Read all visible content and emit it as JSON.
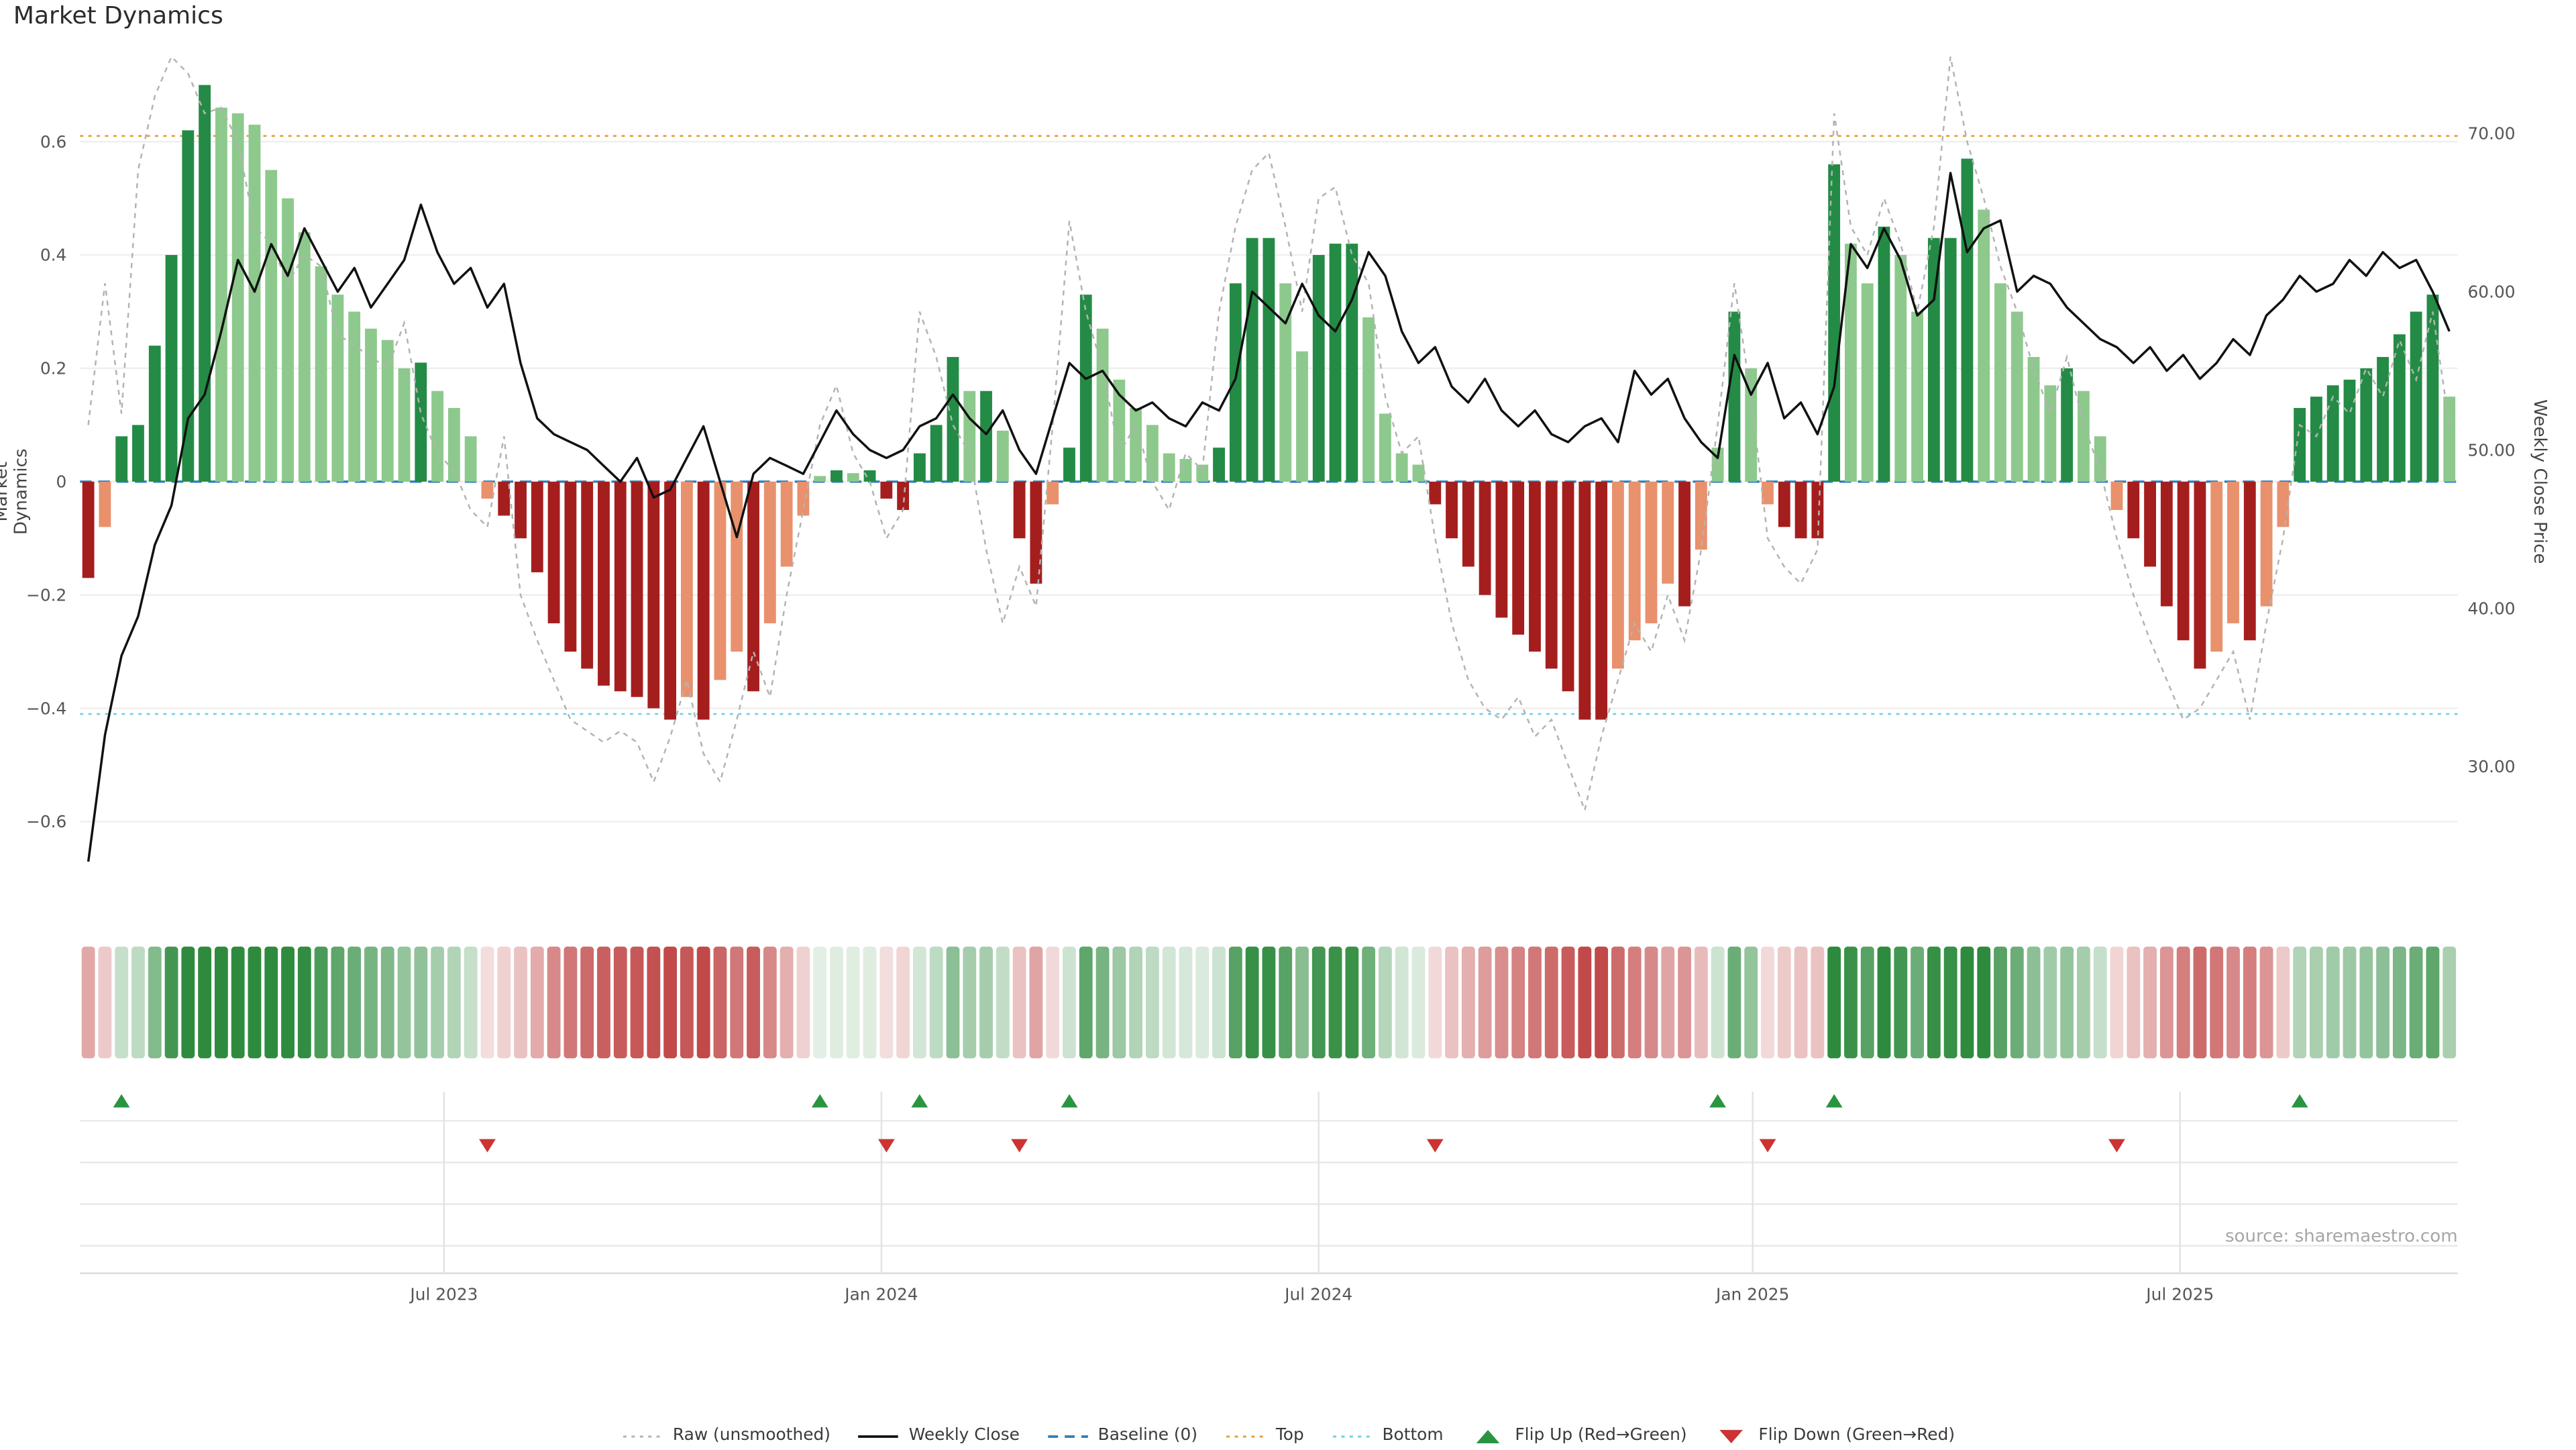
{
  "title": "Market Dynamics",
  "source": "source: sharemaestro.com",
  "axes": {
    "left_label": "Market Dynamics",
    "right_label": "Weekly Close Price",
    "left_ticks": [
      {
        "label": "0.6",
        "value": 0.6
      },
      {
        "label": "0.4",
        "value": 0.4
      },
      {
        "label": "0.2",
        "value": 0.2
      },
      {
        "label": "0",
        "value": 0
      },
      {
        "label": "−0.2",
        "value": -0.2
      },
      {
        "label": "−0.4",
        "value": -0.4
      },
      {
        "label": "−0.6",
        "value": -0.6
      }
    ],
    "right_ticks": [
      {
        "label": "70.00",
        "value": 70
      },
      {
        "label": "60.00",
        "value": 60
      },
      {
        "label": "50.00",
        "value": 50
      },
      {
        "label": "40.00",
        "value": 40
      },
      {
        "label": "30.00",
        "value": 30
      }
    ],
    "x_ticks": [
      {
        "label": "Jul 2023",
        "week": 21.4
      },
      {
        "label": "Jan 2024",
        "week": 47.7
      },
      {
        "label": "Jul 2024",
        "week": 74.0
      },
      {
        "label": "Jan 2025",
        "week": 100.1
      },
      {
        "label": "Jul 2025",
        "week": 125.8
      }
    ]
  },
  "legend": [
    {
      "label": "Raw (unsmoothed)"
    },
    {
      "label": "Weekly Close"
    },
    {
      "label": "Baseline (0)"
    },
    {
      "label": "Top"
    },
    {
      "label": "Bottom"
    },
    {
      "label": "Flip Up (Red→Green)"
    },
    {
      "label": "Flip Down (Green→Red)"
    }
  ],
  "colors": {
    "raw_line": "#b3b3b3",
    "close_line": "#111111",
    "baseline": "#2d7fb8",
    "top": "#e6a23c",
    "bottom": "#6ed0e8",
    "bar_up_strong": "#238b45",
    "bar_up_soft": "#8dc98d",
    "bar_down_strong": "#a51e1e",
    "bar_down_soft": "#e8916c",
    "flip_up": "#2a9440",
    "flip_down": "#cc3333",
    "heat_green": [
      46,
      139,
      62
    ],
    "heat_red": [
      190,
      62,
      62
    ]
  },
  "chart_data": {
    "type": "combo (bar + line + heatmap strip + flip markers)",
    "frequency": "weekly",
    "left_ylim": [
      -0.75,
      0.77
    ],
    "right_ylim": [
      21,
      75.5
    ],
    "baseline": 0,
    "top": 0.61,
    "bottom": -0.41,
    "flip_up_weeks": [
      2,
      44,
      50,
      59,
      98,
      105,
      133
    ],
    "flip_down_weeks": [
      24,
      48,
      56,
      81,
      101,
      122
    ],
    "series": [
      {
        "name": "Market Dynamics (bars)",
        "axis": "left",
        "values": [
          -0.17,
          -0.08,
          0.08,
          0.1,
          0.24,
          0.4,
          0.62,
          0.7,
          0.66,
          0.65,
          0.63,
          0.55,
          0.5,
          0.44,
          0.38,
          0.33,
          0.3,
          0.27,
          0.25,
          0.2,
          0.21,
          0.16,
          0.13,
          0.08,
          -0.03,
          -0.06,
          -0.1,
          -0.16,
          -0.25,
          -0.3,
          -0.33,
          -0.36,
          -0.37,
          -0.38,
          -0.4,
          -0.42,
          -0.38,
          -0.42,
          -0.35,
          -0.3,
          -0.37,
          -0.25,
          -0.15,
          -0.06,
          0.01,
          0.02,
          0.015,
          0.02,
          -0.03,
          -0.05,
          0.05,
          0.1,
          0.22,
          0.16,
          0.16,
          0.09,
          -0.1,
          -0.18,
          -0.04,
          0.06,
          0.33,
          0.27,
          0.18,
          0.13,
          0.1,
          0.05,
          0.04,
          0.03,
          0.06,
          0.35,
          0.43,
          0.43,
          0.35,
          0.23,
          0.4,
          0.42,
          0.42,
          0.29,
          0.12,
          0.05,
          0.03,
          -0.04,
          -0.1,
          -0.15,
          -0.2,
          -0.24,
          -0.27,
          -0.3,
          -0.33,
          -0.37,
          -0.42,
          -0.42,
          -0.33,
          -0.28,
          -0.25,
          -0.18,
          -0.22,
          -0.12,
          0.06,
          0.3,
          0.2,
          -0.04,
          -0.08,
          -0.1,
          -0.1,
          0.56,
          0.42,
          0.35,
          0.45,
          0.4,
          0.3,
          0.43,
          0.43,
          0.57,
          0.48,
          0.35,
          0.3,
          0.22,
          0.17,
          0.2,
          0.16,
          0.08,
          -0.05,
          -0.1,
          -0.15,
          -0.22,
          -0.28,
          -0.33,
          -0.3,
          -0.25,
          -0.28,
          -0.22,
          -0.08,
          0.13,
          0.15,
          0.17,
          0.18,
          0.2,
          0.22,
          0.26,
          0.3,
          0.33,
          0.15
        ]
      },
      {
        "name": "Raw (unsmoothed)",
        "axis": "left",
        "values": [
          0.1,
          0.35,
          0.12,
          0.55,
          0.68,
          0.75,
          0.72,
          0.65,
          0.66,
          0.6,
          0.45,
          0.42,
          0.35,
          0.4,
          0.38,
          0.26,
          0.24,
          0.22,
          0.2,
          0.28,
          0.12,
          0.05,
          0.02,
          -0.05,
          -0.08,
          0.08,
          -0.2,
          -0.28,
          -0.35,
          -0.42,
          -0.44,
          -0.46,
          -0.44,
          -0.46,
          -0.53,
          -0.45,
          -0.35,
          -0.48,
          -0.53,
          -0.42,
          -0.3,
          -0.38,
          -0.2,
          -0.05,
          0.1,
          0.17,
          0.05,
          0.0,
          -0.1,
          -0.05,
          0.3,
          0.22,
          0.1,
          0.05,
          -0.12,
          -0.25,
          -0.15,
          -0.22,
          0.1,
          0.46,
          0.3,
          0.2,
          0.05,
          0.1,
          0.0,
          -0.05,
          0.05,
          0.02,
          0.3,
          0.45,
          0.55,
          0.58,
          0.45,
          0.3,
          0.5,
          0.52,
          0.4,
          0.35,
          0.15,
          0.05,
          0.08,
          -0.1,
          -0.25,
          -0.35,
          -0.4,
          -0.42,
          -0.38,
          -0.45,
          -0.42,
          -0.5,
          -0.58,
          -0.45,
          -0.35,
          -0.25,
          -0.3,
          -0.2,
          -0.28,
          -0.12,
          0.1,
          0.35,
          0.15,
          -0.1,
          -0.15,
          -0.18,
          -0.12,
          0.65,
          0.45,
          0.4,
          0.5,
          0.42,
          0.3,
          0.45,
          0.75,
          0.6,
          0.5,
          0.38,
          0.3,
          0.2,
          0.12,
          0.22,
          0.1,
          0.02,
          -0.1,
          -0.2,
          -0.28,
          -0.35,
          -0.42,
          -0.4,
          -0.35,
          -0.3,
          -0.42,
          -0.25,
          -0.1,
          0.1,
          0.08,
          0.15,
          0.12,
          0.2,
          0.15,
          0.25,
          0.18,
          0.3,
          0.1
        ]
      },
      {
        "name": "Weekly Close",
        "axis": "right",
        "values": [
          24.0,
          32.0,
          37.0,
          39.5,
          44.0,
          46.5,
          52.0,
          53.5,
          57.5,
          62.0,
          60.0,
          63.0,
          61.0,
          64.0,
          62.0,
          60.0,
          61.5,
          59.0,
          60.5,
          62.0,
          65.5,
          62.5,
          60.5,
          61.5,
          59.0,
          60.5,
          55.5,
          52.0,
          51.0,
          50.5,
          50.0,
          49.0,
          48.0,
          49.5,
          47.0,
          47.5,
          49.5,
          51.5,
          48.0,
          44.5,
          48.5,
          49.5,
          49.0,
          48.5,
          50.5,
          52.5,
          51.0,
          50.0,
          49.5,
          50.0,
          51.5,
          52.0,
          53.5,
          52.0,
          51.0,
          52.5,
          50.0,
          48.5,
          52.0,
          55.5,
          54.5,
          55.0,
          53.5,
          52.5,
          53.0,
          52.0,
          51.5,
          53.0,
          52.5,
          54.5,
          60.0,
          59.0,
          58.0,
          60.5,
          58.5,
          57.5,
          59.5,
          62.5,
          61.0,
          57.5,
          55.5,
          56.5,
          54.0,
          53.0,
          54.5,
          52.5,
          51.5,
          52.5,
          51.0,
          50.5,
          51.5,
          52.0,
          50.5,
          55.0,
          53.5,
          54.5,
          52.0,
          50.5,
          49.5,
          56.0,
          53.5,
          55.5,
          52.0,
          53.0,
          51.0,
          54.0,
          63.0,
          61.5,
          64.0,
          62.0,
          58.5,
          59.5,
          67.5,
          62.5,
          64.0,
          64.5,
          60.0,
          61.0,
          60.5,
          59.0,
          58.0,
          57.0,
          56.5,
          55.5,
          56.5,
          55.0,
          56.0,
          54.5,
          55.5,
          57.0,
          56.0,
          58.5,
          59.5,
          61.0,
          60.0,
          60.5,
          62.0,
          61.0,
          62.5,
          61.5,
          62.0,
          60.0,
          57.5
        ]
      }
    ]
  }
}
